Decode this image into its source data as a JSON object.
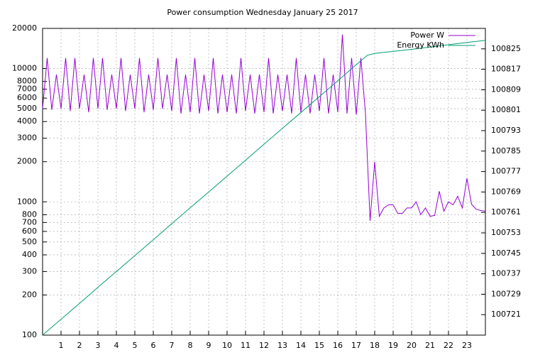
{
  "chart_data": {
    "type": "line",
    "title": "Power consumption Wednesday January 25 2017",
    "xlim": [
      0,
      24
    ],
    "xticks": [
      1,
      2,
      3,
      4,
      5,
      6,
      7,
      8,
      9,
      10,
      11,
      12,
      13,
      14,
      15,
      16,
      17,
      18,
      19,
      20,
      21,
      22,
      23
    ],
    "ylim": [
      100,
      20000
    ],
    "yscale": "log",
    "yticks": [
      100,
      200,
      300,
      400,
      500,
      600,
      700,
      800,
      1000,
      2000,
      3000,
      4000,
      5000,
      6000,
      7000,
      8000,
      10000,
      20000
    ],
    "y2lim": [
      100713,
      100833
    ],
    "y2ticks": [
      100721,
      100729,
      100737,
      100745,
      100753,
      100761,
      100769,
      100777,
      100785,
      100793,
      100801,
      100809,
      100817,
      100825
    ],
    "grid": true,
    "legend": "top-right",
    "series": [
      {
        "name": "Power W",
        "color": "#9400d3",
        "x": [
          0,
          0.25,
          0.5,
          0.75,
          1,
          1.25,
          1.5,
          1.75,
          2,
          2.25,
          2.5,
          2.75,
          3,
          3.25,
          3.5,
          3.75,
          4,
          4.25,
          4.5,
          4.75,
          5,
          5.25,
          5.5,
          5.75,
          6,
          6.25,
          6.5,
          6.75,
          7,
          7.25,
          7.5,
          7.75,
          8,
          8.25,
          8.5,
          8.75,
          9,
          9.25,
          9.5,
          9.75,
          10,
          10.25,
          10.5,
          10.75,
          11,
          11.25,
          11.5,
          11.75,
          12,
          12.25,
          12.5,
          12.75,
          13,
          13.25,
          13.5,
          13.75,
          14,
          14.25,
          14.5,
          14.75,
          15,
          15.25,
          15.5,
          15.75,
          16,
          16.25,
          16.5,
          16.75,
          17,
          17.25,
          17.5,
          17.75,
          18,
          18.25,
          18.5,
          18.75,
          19,
          19.25,
          19.5,
          19.75,
          20,
          20.25,
          20.5,
          20.75,
          21,
          21.25,
          21.5,
          21.75,
          22,
          22.25,
          22.5,
          22.75,
          23,
          23.25,
          23.5,
          23.75,
          24
        ],
        "values": [
          5000,
          12000,
          4900,
          9000,
          5000,
          12000,
          4800,
          12000,
          5000,
          9000,
          4700,
          12000,
          5000,
          12000,
          4900,
          9000,
          5000,
          12000,
          4800,
          9000,
          5000,
          12000,
          4700,
          9000,
          4900,
          12000,
          5000,
          9000,
          4800,
          12000,
          4600,
          9000,
          4700,
          12000,
          4600,
          9000,
          4800,
          12000,
          4600,
          9000,
          4700,
          9000,
          4600,
          12000,
          4800,
          9000,
          4600,
          9000,
          4700,
          12000,
          4600,
          9000,
          4800,
          9000,
          4600,
          12000,
          4700,
          9000,
          4600,
          9000,
          4800,
          12000,
          4600,
          9000,
          4700,
          18000,
          4600,
          12000,
          4500,
          12000,
          4600,
          720,
          2000,
          780,
          900,
          950,
          950,
          820,
          820,
          900,
          900,
          1000,
          800,
          900,
          780,
          790,
          1200,
          850,
          1000,
          950,
          1100,
          900,
          1500,
          960,
          880,
          860,
          850
        ]
      },
      {
        "name": "Energy KWh",
        "color": "#009e73",
        "axis": "y2",
        "x": [
          0,
          1,
          2,
          3,
          4,
          5,
          6,
          7,
          8,
          9,
          10,
          11,
          12,
          13,
          14,
          15,
          16,
          17,
          17.6,
          18,
          19,
          20,
          21,
          22,
          23,
          24
        ],
        "values": [
          100713,
          100719.2,
          100725.4,
          100731.7,
          100737.9,
          100744.1,
          100750.3,
          100756.6,
          100762.8,
          100769,
          100775.2,
          100781.4,
          100787.7,
          100793.9,
          100800.1,
          100806.3,
          100812.5,
          100818.8,
          100822.5,
          100823.2,
          100824,
          100824.8,
          100825.7,
          100826.6,
          100827.5,
          100828.3
        ]
      }
    ]
  }
}
